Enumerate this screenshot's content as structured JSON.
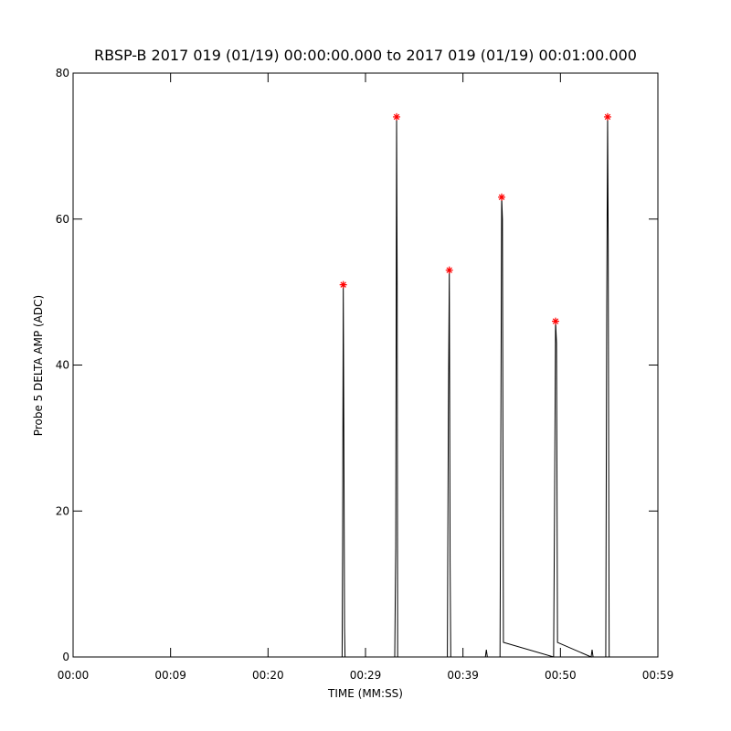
{
  "chart_data": {
    "type": "line",
    "title": "RBSP-B 2017 019 (01/19) 00:00:00.000 to 2017 019 (01/19) 00:01:00.000",
    "x_label": "TIME (MM:SS)",
    "y_label": "Probe 5 DELTA AMP (ADC)",
    "xlim": [
      0,
      60
    ],
    "xticks": [
      {
        "value": 0,
        "label": "00:00"
      },
      {
        "value": 10,
        "label": "00:09"
      },
      {
        "value": 20,
        "label": "00:20"
      },
      {
        "value": 30,
        "label": "00:29"
      },
      {
        "value": 40,
        "label": "00:39"
      },
      {
        "value": 50,
        "label": "00:50"
      },
      {
        "value": 60,
        "label": "00:59"
      }
    ],
    "ylim": [
      0,
      80
    ],
    "yticks": [
      0,
      20,
      40,
      60,
      80
    ],
    "series": [
      {
        "color": "#000000",
        "x": [
          0,
          27.6,
          27.65,
          27.72,
          27.78,
          27.85,
          27.9,
          33.0,
          33.1,
          33.19,
          33.25,
          33.3,
          38.4,
          38.5,
          38.6,
          38.68,
          38.75,
          42.3,
          42.4,
          42.5,
          43.8,
          43.9,
          43.97,
          44.05,
          44.15,
          49.3,
          49.4,
          49.5,
          49.6,
          49.7,
          53.15,
          53.25,
          53.35,
          54.65,
          54.75,
          54.84,
          54.9,
          55.0,
          60
        ],
        "values": [
          0,
          0,
          15,
          51,
          30,
          4,
          0,
          0,
          15,
          74,
          51,
          0,
          0,
          33,
          53,
          13,
          0,
          0,
          1,
          0,
          0,
          36,
          63,
          60,
          2,
          0,
          21,
          46,
          43,
          2,
          0,
          1,
          0,
          0,
          48,
          74,
          57,
          0,
          0
        ]
      },
      {
        "color": "#ff0000",
        "marker": "asterisk",
        "x": [
          27.72,
          33.19,
          38.6,
          43.97,
          49.5,
          54.84
        ],
        "values": [
          51,
          74,
          53,
          63,
          46,
          74
        ]
      }
    ]
  }
}
